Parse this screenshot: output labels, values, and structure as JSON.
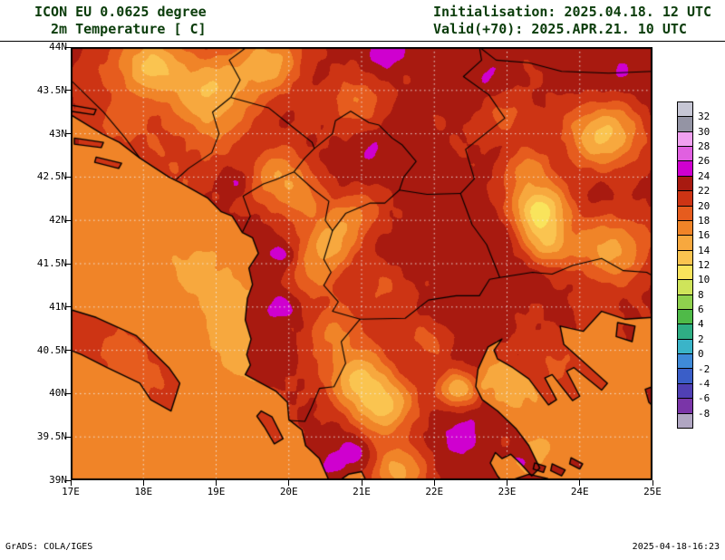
{
  "header": {
    "model_title": "ICON EU 0.0625 degree",
    "field_title": "2m Temperature [ C]",
    "init_time": "Initialisation: 2025.04.18. 12 UTC",
    "valid_time": "Valid(+70): 2025.APR.21. 10 UTC"
  },
  "footer": {
    "credit": "GrADS: COLA/IGES",
    "timestamp": "2025-04-18-16:23"
  },
  "colors": {
    "header_text": "#0a3c0a",
    "frame": "#000000",
    "coastline": "#000000",
    "gridline": "#f0f0f0"
  },
  "chart_data": {
    "type": "heatmap",
    "subtype": "filled_contour_temperature_map",
    "title": "2m Temperature [ C]",
    "units": "C",
    "model": "ICON EU 0.0625 degree",
    "init": "2025.04.18. 12 UTC",
    "valid": "2025.APR.21. 10 UTC",
    "lead_hours": 70,
    "geo": {
      "lon_min": 17,
      "lon_max": 25,
      "lat_min": 39,
      "lat_max": 44
    },
    "x_ticks": [
      "17E",
      "18E",
      "19E",
      "20E",
      "21E",
      "22E",
      "23E",
      "24E",
      "25E"
    ],
    "y_ticks": [
      "44N",
      "43.5N",
      "43N",
      "42.5N",
      "42N",
      "41.5N",
      "41N",
      "40.5N",
      "40N",
      "39.5N",
      "39N"
    ],
    "grid": {
      "lon_step": 1,
      "lat_step": 0.5
    },
    "colorbar": {
      "levels": [
        32,
        30,
        28,
        26,
        24,
        22,
        20,
        18,
        16,
        14,
        12,
        10,
        8,
        6,
        4,
        2,
        0,
        -2,
        -4,
        -6,
        -8
      ],
      "colors": [
        "#c6c6d4",
        "#9494a4",
        "#f0a0f0",
        "#e060e0",
        "#cf00cf",
        "#a81a10",
        "#cd3414",
        "#e65c1e",
        "#f08428",
        "#f7a83e",
        "#fac450",
        "#f9e45c",
        "#cfe45a",
        "#8fd14e",
        "#4fba48",
        "#2fae84",
        "#3ab4c8",
        "#3f8ad8",
        "#3a5ec8",
        "#5040b4",
        "#7a35a8",
        "#b0a6c2"
      ]
    },
    "field": {
      "sea_base": 16.6,
      "land_base": 22.7,
      "land_noise": 0.95,
      "sea_noise": 0.2,
      "land_blobs": [
        [
          18.1,
          43.8,
          -9,
          0.4
        ],
        [
          18.85,
          43.5,
          -6.5,
          0.38
        ],
        [
          19.6,
          43.75,
          -5,
          0.4
        ],
        [
          19.05,
          43.1,
          -4.5,
          0.35
        ],
        [
          19.8,
          43.9,
          -3.5,
          0.35
        ],
        [
          20.9,
          43.35,
          -4.5,
          0.3
        ],
        [
          19.85,
          42.5,
          -6.5,
          0.33
        ],
        [
          20.2,
          42.2,
          -4,
          0.28
        ],
        [
          20.9,
          42.08,
          -4.5,
          0.28
        ],
        [
          20.55,
          41.72,
          -7,
          0.3
        ],
        [
          20.35,
          41.3,
          -3.5,
          0.28
        ],
        [
          21.3,
          41.25,
          -3,
          0.3
        ],
        [
          20.6,
          40.72,
          -5,
          0.3
        ],
        [
          20.95,
          40.2,
          -8,
          0.33
        ],
        [
          21.3,
          39.85,
          -9,
          0.33
        ],
        [
          21.5,
          39.1,
          -7,
          0.32
        ],
        [
          22.32,
          40.05,
          -8,
          0.2
        ],
        [
          21.9,
          40.62,
          -3.5,
          0.25
        ],
        [
          23.45,
          42.12,
          -11,
          0.3
        ],
        [
          23.55,
          41.72,
          -7,
          0.25
        ],
        [
          24.45,
          41.68,
          -7,
          0.4
        ],
        [
          23.28,
          42.6,
          -5,
          0.25
        ],
        [
          24.35,
          43.0,
          -9,
          0.4
        ],
        [
          23.0,
          43.2,
          -3.5,
          0.3
        ],
        [
          17.6,
          43.05,
          -3,
          0.45
        ],
        [
          18.55,
          42.55,
          -2.5,
          0.35
        ],
        [
          17.8,
          40.4,
          -3.4,
          0.6
        ],
        [
          19.72,
          39.6,
          -2.5,
          0.28
        ],
        [
          20.28,
          39.05,
          -1.5,
          0.22
        ],
        [
          23.6,
          40.25,
          -3,
          0.4
        ],
        [
          24.3,
          40.85,
          -2,
          0.3
        ],
        [
          19.3,
          42.45,
          3.2,
          0.17
        ],
        [
          19.9,
          41.62,
          2.9,
          0.15
        ],
        [
          19.88,
          41.0,
          2.9,
          0.17
        ],
        [
          20.95,
          39.3,
          3.6,
          0.2
        ],
        [
          20.55,
          39.15,
          2.4,
          0.14
        ],
        [
          23.15,
          39.18,
          2.8,
          0.14
        ],
        [
          21.35,
          43.92,
          3.0,
          0.2
        ],
        [
          22.3,
          39.55,
          1.6,
          0.3
        ],
        [
          21.9,
          41.65,
          0.9,
          0.3
        ],
        [
          24.6,
          43.55,
          1.0,
          0.5
        ],
        [
          22.7,
          43.6,
          1.2,
          0.35
        ],
        [
          21.15,
          42.62,
          1.0,
          0.3
        ],
        [
          22.9,
          41.9,
          1.0,
          0.3
        ]
      ],
      "sea_blobs": [
        [
          19.55,
          40.55,
          -1.3,
          0.5
        ],
        [
          18.9,
          41.4,
          -0.8,
          0.5
        ],
        [
          23.05,
          40.1,
          -0.9,
          0.4
        ],
        [
          23.4,
          39.3,
          -0.6,
          0.4
        ]
      ]
    },
    "land": [
      [
        [
          17,
          44
        ],
        [
          25,
          44
        ],
        [
          25,
          40.88
        ],
        [
          24.62,
          40.86
        ],
        [
          24.3,
          40.95
        ],
        [
          24.05,
          40.72
        ],
        [
          23.73,
          40.78
        ],
        [
          23.78,
          40.57
        ],
        [
          23.98,
          40.42
        ],
        [
          24.38,
          40.12
        ],
        [
          24.3,
          40.04
        ],
        [
          23.92,
          40.3
        ],
        [
          23.82,
          40.26
        ],
        [
          24.0,
          39.97
        ],
        [
          23.9,
          39.92
        ],
        [
          23.62,
          40.22
        ],
        [
          23.52,
          40.18
        ],
        [
          23.68,
          39.93
        ],
        [
          23.57,
          39.87
        ],
        [
          23.3,
          40.17
        ],
        [
          23.08,
          40.3
        ],
        [
          22.87,
          40.4
        ],
        [
          22.82,
          40.5
        ],
        [
          22.93,
          40.63
        ],
        [
          22.74,
          40.54
        ],
        [
          22.6,
          40.28
        ],
        [
          22.57,
          40.08
        ],
        [
          22.66,
          39.93
        ],
        [
          22.87,
          39.8
        ],
        [
          23.12,
          39.6
        ],
        [
          23.3,
          39.4
        ],
        [
          23.45,
          39.14
        ],
        [
          23.34,
          39.05
        ],
        [
          23.2,
          39.18
        ],
        [
          23.05,
          39.3
        ],
        [
          22.93,
          39.25
        ],
        [
          22.84,
          39.32
        ],
        [
          22.77,
          39.2
        ],
        [
          22.87,
          39.05
        ],
        [
          22.92,
          39.0
        ],
        [
          21.06,
          39.0
        ],
        [
          21.0,
          39.1
        ],
        [
          20.82,
          39.07
        ],
        [
          20.7,
          39.0
        ],
        [
          20.55,
          39.0
        ],
        [
          20.42,
          39.25
        ],
        [
          20.23,
          39.4
        ],
        [
          20.18,
          39.58
        ],
        [
          20.0,
          39.7
        ],
        [
          19.98,
          39.9
        ],
        [
          19.82,
          40.03
        ],
        [
          19.4,
          40.22
        ],
        [
          19.47,
          40.33
        ],
        [
          19.42,
          40.45
        ],
        [
          19.48,
          40.63
        ],
        [
          19.4,
          40.85
        ],
        [
          19.43,
          41.1
        ],
        [
          19.5,
          41.26
        ],
        [
          19.45,
          41.45
        ],
        [
          19.58,
          41.62
        ],
        [
          19.5,
          41.8
        ],
        [
          19.36,
          41.86
        ],
        [
          19.22,
          42.05
        ],
        [
          19.07,
          42.1
        ],
        [
          18.88,
          42.26
        ],
        [
          18.52,
          42.43
        ],
        [
          18.35,
          42.5
        ],
        [
          17.95,
          42.72
        ],
        [
          17.67,
          42.9
        ],
        [
          17.43,
          43.0
        ],
        [
          17.0,
          43.22
        ]
      ],
      [
        [
          17,
          40.97
        ],
        [
          17.35,
          40.88
        ],
        [
          17.9,
          40.67
        ],
        [
          18.35,
          40.3
        ],
        [
          18.5,
          40.12
        ],
        [
          18.38,
          39.8
        ],
        [
          18.1,
          39.93
        ],
        [
          17.95,
          40.12
        ],
        [
          17.5,
          40.3
        ],
        [
          17.15,
          40.45
        ],
        [
          17,
          40.5
        ]
      ],
      [
        [
          17.0,
          43.33
        ],
        [
          17.35,
          43.28
        ],
        [
          17.32,
          43.22
        ],
        [
          17.0,
          43.26
        ]
      ],
      [
        [
          17.05,
          42.95
        ],
        [
          17.45,
          42.9
        ],
        [
          17.42,
          42.84
        ],
        [
          17.05,
          42.88
        ]
      ],
      [
        [
          17.35,
          42.73
        ],
        [
          17.7,
          42.66
        ],
        [
          17.66,
          42.6
        ],
        [
          17.33,
          42.67
        ]
      ],
      [
        [
          19.62,
          39.8
        ],
        [
          19.77,
          39.73
        ],
        [
          19.92,
          39.48
        ],
        [
          19.8,
          39.42
        ],
        [
          19.66,
          39.62
        ],
        [
          19.56,
          39.74
        ]
      ],
      [
        [
          23.38,
          39.2
        ],
        [
          23.53,
          39.16
        ],
        [
          23.5,
          39.09
        ],
        [
          23.36,
          39.13
        ]
      ],
      [
        [
          23.62,
          39.19
        ],
        [
          23.8,
          39.12
        ],
        [
          23.75,
          39.05
        ],
        [
          23.6,
          39.11
        ]
      ],
      [
        [
          23.88,
          39.26
        ],
        [
          24.04,
          39.19
        ],
        [
          24.0,
          39.13
        ],
        [
          23.86,
          39.19
        ]
      ],
      [
        [
          23.06,
          39.0
        ],
        [
          23.3,
          39.07
        ],
        [
          23.56,
          39.02
        ],
        [
          23.58,
          39.0
        ]
      ],
      [
        [
          24.52,
          40.82
        ],
        [
          24.76,
          40.78
        ],
        [
          24.72,
          40.6
        ],
        [
          24.5,
          40.66
        ]
      ],
      [
        [
          24.9,
          40.05
        ],
        [
          25,
          40.08
        ],
        [
          25,
          39.86
        ],
        [
          24.95,
          39.9
        ]
      ]
    ],
    "borders": [
      [
        [
          17,
          43.62
        ],
        [
          17.45,
          43.25
        ],
        [
          17.75,
          42.95
        ],
        [
          17.95,
          42.72
        ]
      ],
      [
        [
          18.45,
          42.47
        ],
        [
          18.62,
          42.6
        ],
        [
          18.94,
          42.78
        ],
        [
          19.04,
          43.0
        ],
        [
          18.95,
          43.25
        ],
        [
          19.2,
          43.42
        ]
      ],
      [
        [
          19.2,
          43.42
        ],
        [
          19.33,
          43.62
        ],
        [
          19.18,
          43.85
        ],
        [
          19.42,
          44.0
        ]
      ],
      [
        [
          19.2,
          43.42
        ],
        [
          19.72,
          43.3
        ],
        [
          20.05,
          43.08
        ],
        [
          20.32,
          42.9
        ],
        [
          20.35,
          42.83
        ]
      ],
      [
        [
          19.36,
          41.86
        ],
        [
          19.47,
          42.05
        ],
        [
          19.37,
          42.28
        ],
        [
          19.65,
          42.42
        ],
        [
          19.82,
          42.47
        ],
        [
          20.07,
          42.56
        ]
      ],
      [
        [
          20.07,
          42.56
        ],
        [
          20.22,
          42.72
        ],
        [
          20.35,
          42.83
        ],
        [
          20.6,
          43.0
        ],
        [
          20.64,
          43.15
        ],
        [
          20.85,
          43.26
        ],
        [
          21.1,
          43.13
        ],
        [
          21.24,
          43.1
        ],
        [
          21.42,
          42.95
        ],
        [
          21.56,
          42.87
        ],
        [
          21.75,
          42.68
        ],
        [
          21.58,
          42.5
        ],
        [
          21.52,
          42.35
        ],
        [
          21.32,
          42.2
        ],
        [
          21.12,
          42.2
        ],
        [
          20.78,
          42.08
        ],
        [
          20.6,
          41.88
        ],
        [
          20.5,
          42.0
        ],
        [
          20.55,
          42.22
        ],
        [
          20.35,
          42.35
        ],
        [
          20.07,
          42.56
        ]
      ],
      [
        [
          21.52,
          42.35
        ],
        [
          21.9,
          42.3
        ],
        [
          22.36,
          42.31
        ]
      ],
      [
        [
          22.36,
          42.31
        ],
        [
          22.55,
          42.48
        ],
        [
          22.43,
          42.82
        ],
        [
          22.97,
          43.18
        ],
        [
          22.75,
          43.45
        ],
        [
          22.4,
          43.66
        ],
        [
          22.65,
          43.85
        ],
        [
          22.62,
          44.0
        ]
      ],
      [
        [
          22.36,
          42.31
        ],
        [
          22.52,
          41.95
        ],
        [
          22.72,
          41.72
        ],
        [
          22.9,
          41.34
        ]
      ],
      [
        [
          20.98,
          40.86
        ],
        [
          21.6,
          40.87
        ],
        [
          21.92,
          41.08
        ],
        [
          22.3,
          41.13
        ],
        [
          22.62,
          41.13
        ],
        [
          22.76,
          41.32
        ],
        [
          22.9,
          41.34
        ]
      ],
      [
        [
          20.6,
          41.88
        ],
        [
          20.48,
          41.55
        ],
        [
          20.58,
          41.4
        ],
        [
          20.48,
          41.25
        ],
        [
          20.68,
          41.06
        ],
        [
          20.6,
          40.95
        ],
        [
          20.98,
          40.86
        ]
      ],
      [
        [
          20.0,
          39.69
        ],
        [
          20.22,
          39.68
        ],
        [
          20.3,
          39.82
        ],
        [
          20.42,
          40.06
        ],
        [
          20.62,
          40.08
        ],
        [
          20.78,
          40.35
        ],
        [
          20.72,
          40.6
        ],
        [
          20.98,
          40.86
        ]
      ],
      [
        [
          22.9,
          41.34
        ],
        [
          23.35,
          41.4
        ],
        [
          23.62,
          41.38
        ],
        [
          23.9,
          41.48
        ],
        [
          24.3,
          41.56
        ],
        [
          24.6,
          41.42
        ],
        [
          24.92,
          41.4
        ],
        [
          25,
          41.36
        ]
      ],
      [
        [
          22.62,
          44.0
        ],
        [
          22.85,
          43.85
        ],
        [
          23.3,
          43.82
        ],
        [
          23.75,
          43.72
        ],
        [
          24.4,
          43.7
        ],
        [
          25,
          43.72
        ]
      ]
    ]
  }
}
